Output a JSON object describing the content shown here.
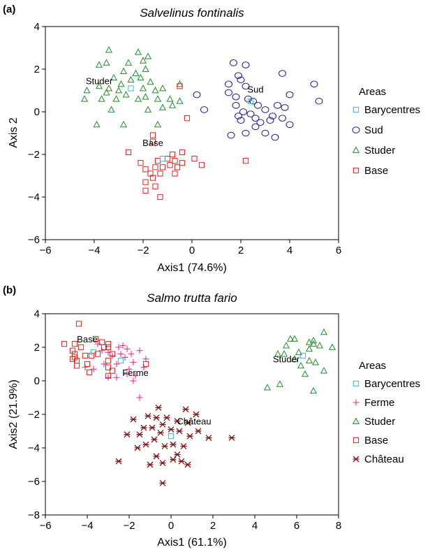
{
  "colors": {
    "barycentres": "#3fb6c8",
    "sud": "#1c1c8c",
    "studer": "#1f8a2b",
    "base": "#e0201c",
    "ferme": "#e0208c",
    "chateau": "#7a1414"
  },
  "chart_data": [
    {
      "type": "scatter",
      "panel_label": "(a)",
      "title": "Salvelinus fontinalis",
      "xlabel": "Axis1 (74.6%)",
      "ylabel": "Axis 2",
      "xlim": [
        -6,
        6
      ],
      "ylim": [
        -6,
        4
      ],
      "xticks": [
        -6,
        -4,
        -2,
        0,
        2,
        4,
        6
      ],
      "yticks": [
        -6,
        -4,
        -2,
        0,
        2,
        4
      ],
      "xtick_labels": [
        "−6",
        "−4",
        "−2",
        "0",
        "2",
        "4",
        "6"
      ],
      "ytick_labels": [
        "−6",
        "−4",
        "−2",
        "0",
        "2",
        "4"
      ],
      "legend_title": "Areas",
      "legend_position": "right",
      "group_labels": [
        {
          "text": "Studer",
          "x": -3.8,
          "y": 1.3
        },
        {
          "text": "Sud",
          "x": 2.6,
          "y": 0.9
        },
        {
          "text": "Base",
          "x": -1.6,
          "y": -1.6
        }
      ],
      "series": [
        {
          "name": "Barycentres",
          "marker": "square",
          "color": "#3fb6c8",
          "points": [
            [
              -2.5,
              1.1
            ],
            [
              2.4,
              0.5
            ],
            [
              -1.2,
              -2.2
            ]
          ]
        },
        {
          "name": "Sud",
          "marker": "circle",
          "color": "#1c1c8c",
          "points": [
            [
              1.7,
              2.3
            ],
            [
              2.2,
              2.2
            ],
            [
              1.9,
              1.7
            ],
            [
              2.0,
              1.5
            ],
            [
              1.5,
              1.3
            ],
            [
              2.2,
              1.2
            ],
            [
              3.7,
              1.8
            ],
            [
              4.0,
              0.8
            ],
            [
              5.0,
              1.3
            ],
            [
              5.2,
              0.5
            ],
            [
              0.2,
              0.8
            ],
            [
              0.5,
              0.1
            ],
            [
              1.5,
              0.9
            ],
            [
              1.8,
              0.7
            ],
            [
              2.5,
              0.5
            ],
            [
              2.7,
              0.3
            ],
            [
              3.0,
              0.1
            ],
            [
              3.3,
              -0.2
            ],
            [
              3.5,
              0.3
            ],
            [
              3.8,
              0.2
            ],
            [
              2.4,
              -0.1
            ],
            [
              2.6,
              -0.3
            ],
            [
              2.0,
              -0.4
            ],
            [
              2.1,
              0.0
            ],
            [
              1.9,
              -0.2
            ],
            [
              2.8,
              -0.5
            ],
            [
              3.2,
              -0.4
            ],
            [
              3.7,
              -0.3
            ],
            [
              4.0,
              -0.6
            ],
            [
              2.2,
              -1.0
            ],
            [
              3.0,
              -1.0
            ],
            [
              1.6,
              -1.1
            ],
            [
              2.6,
              -0.7
            ],
            [
              1.8,
              0.3
            ],
            [
              2.3,
              0.6
            ],
            [
              3.4,
              -1.2
            ]
          ]
        },
        {
          "name": "Studer",
          "marker": "triangle",
          "color": "#1f8a2b",
          "points": [
            [
              -3.4,
              2.9
            ],
            [
              -2.2,
              2.8
            ],
            [
              -1.8,
              2.6
            ],
            [
              -2.0,
              2.4
            ],
            [
              -3.8,
              2.2
            ],
            [
              -3.5,
              2.3
            ],
            [
              -2.6,
              2.3
            ],
            [
              -1.9,
              2.0
            ],
            [
              -2.3,
              1.8
            ],
            [
              -3.2,
              1.6
            ],
            [
              -2.8,
              1.9
            ],
            [
              -2.1,
              1.6
            ],
            [
              -1.7,
              1.4
            ],
            [
              -2.5,
              1.5
            ],
            [
              -2.9,
              1.3
            ],
            [
              -3.4,
              1.1
            ],
            [
              -3.8,
              1.2
            ],
            [
              -4.3,
              1.0
            ],
            [
              -3.0,
              1.0
            ],
            [
              -2.0,
              1.1
            ],
            [
              -1.5,
              1.0
            ],
            [
              -1.2,
              1.1
            ],
            [
              -0.5,
              1.3
            ],
            [
              -3.5,
              0.9
            ],
            [
              -2.7,
              0.8
            ],
            [
              -4.4,
              0.6
            ],
            [
              -3.7,
              0.6
            ],
            [
              -3.1,
              0.6
            ],
            [
              -2.2,
              0.6
            ],
            [
              -1.9,
              0.7
            ],
            [
              -1.4,
              0.6
            ],
            [
              -0.9,
              0.6
            ],
            [
              -0.5,
              0.5
            ],
            [
              -3.3,
              0.1
            ],
            [
              -1.8,
              0.1
            ],
            [
              -1.2,
              0.2
            ],
            [
              -0.8,
              0.3
            ],
            [
              -3.9,
              -0.6
            ],
            [
              -2.8,
              -0.6
            ],
            [
              -1.4,
              -0.6
            ]
          ]
        },
        {
          "name": "Base",
          "marker": "square",
          "color": "#e0201c",
          "points": [
            [
              -0.5,
              1.2
            ],
            [
              -0.2,
              -0.3
            ],
            [
              -1.6,
              -1.1
            ],
            [
              -1.6,
              -1.4
            ],
            [
              -2.6,
              -1.9
            ],
            [
              -0.4,
              -1.9
            ],
            [
              -1.0,
              -2.2
            ],
            [
              -2.1,
              -2.4
            ],
            [
              -1.9,
              -2.7
            ],
            [
              -1.5,
              -2.6
            ],
            [
              -1.4,
              -2.3
            ],
            [
              -1.3,
              -2.9
            ],
            [
              -1.7,
              -2.9
            ],
            [
              -1.2,
              -2.6
            ],
            [
              -0.8,
              -2.0
            ],
            [
              -0.7,
              -2.3
            ],
            [
              -0.6,
              -2.6
            ],
            [
              -0.4,
              -2.4
            ],
            [
              -0.9,
              -2.5
            ],
            [
              -1.9,
              -3.3
            ],
            [
              -1.6,
              -3.1
            ],
            [
              -1.5,
              -3.5
            ],
            [
              -1.9,
              -3.7
            ],
            [
              -1.3,
              -4.0
            ],
            [
              -0.7,
              -2.9
            ],
            [
              0.1,
              -2.2
            ],
            [
              0.4,
              -2.5
            ],
            [
              2.2,
              -2.3
            ]
          ]
        }
      ]
    },
    {
      "type": "scatter",
      "panel_label": "(b)",
      "title": "Salmo trutta fario",
      "xlabel": "Axis1 (61.1%)",
      "ylabel": "Axis2 (21.9%)",
      "xlim": [
        -6,
        8
      ],
      "ylim": [
        -8,
        4
      ],
      "xticks": [
        -6,
        -4,
        -2,
        0,
        2,
        4,
        6,
        8
      ],
      "yticks": [
        -8,
        -6,
        -4,
        -2,
        0,
        2,
        4
      ],
      "xtick_labels": [
        "−6",
        "−4",
        "−2",
        "0",
        "2",
        "4",
        "6",
        "8"
      ],
      "ytick_labels": [
        "−8",
        "−6",
        "−4",
        "−2",
        "0",
        "2",
        "4"
      ],
      "legend_title": "Areas",
      "legend_position": "right",
      "group_labels": [
        {
          "text": "Base",
          "x": -4.0,
          "y": 2.3
        },
        {
          "text": "Ferme",
          "x": -1.7,
          "y": 0.3
        },
        {
          "text": "Studer",
          "x": 5.5,
          "y": 1.1
        },
        {
          "text": "Château",
          "x": 1.1,
          "y": -2.6
        }
      ],
      "series": [
        {
          "name": "Barycentres",
          "marker": "square",
          "color": "#3fb6c8",
          "points": [
            [
              -3.7,
              1.7
            ],
            [
              -2.4,
              1.2
            ],
            [
              6.3,
              1.5
            ],
            [
              0.0,
              -3.3
            ]
          ]
        },
        {
          "name": "Ferme",
          "marker": "plus",
          "color": "#e0208c",
          "points": [
            [
              -3.5,
              2.2
            ],
            [
              -2.5,
              2.0
            ],
            [
              -2.3,
              2.1
            ],
            [
              -2.1,
              1.9
            ],
            [
              -1.5,
              1.8
            ],
            [
              -3.3,
              1.8
            ],
            [
              -3.0,
              1.7
            ],
            [
              -2.8,
              1.5
            ],
            [
              -2.2,
              1.4
            ],
            [
              -1.2,
              1.3
            ],
            [
              -1.8,
              1.1
            ],
            [
              -2.6,
              1.0
            ],
            [
              -3.2,
              1.0
            ],
            [
              -2.0,
              0.7
            ],
            [
              -4.1,
              0.8
            ],
            [
              -3.7,
              0.7
            ],
            [
              -2.1,
              0.4
            ],
            [
              -1.7,
              0.3
            ],
            [
              -2.6,
              0.2
            ],
            [
              -3.0,
              0.2
            ],
            [
              -1.8,
              0.0
            ],
            [
              -1.9,
              1.6
            ],
            [
              -1.5,
              -1.0
            ],
            [
              -1.3,
              0.8
            ],
            [
              -2.4,
              1.6
            ]
          ]
        },
        {
          "name": "Studer",
          "marker": "triangle",
          "color": "#1f8a2b",
          "points": [
            [
              7.3,
              2.9
            ],
            [
              5.7,
              2.5
            ],
            [
              5.9,
              2.5
            ],
            [
              6.8,
              2.4
            ],
            [
              6.6,
              2.3
            ],
            [
              6.8,
              2.2
            ],
            [
              5.5,
              2.1
            ],
            [
              7.1,
              2.1
            ],
            [
              7.7,
              2.0
            ],
            [
              6.6,
              1.9
            ],
            [
              6.1,
              1.7
            ],
            [
              5.4,
              1.6
            ],
            [
              5.1,
              1.6
            ],
            [
              5.9,
              1.3
            ],
            [
              6.6,
              1.2
            ],
            [
              6.9,
              1.1
            ],
            [
              6.2,
              0.9
            ],
            [
              6.4,
              0.4
            ],
            [
              7.3,
              0.6
            ],
            [
              5.2,
              -0.2
            ],
            [
              4.6,
              -0.4
            ],
            [
              6.8,
              -0.6
            ]
          ]
        },
        {
          "name": "Base",
          "marker": "square",
          "color": "#e0201c",
          "points": [
            [
              -4.4,
              3.4
            ],
            [
              -5.1,
              2.2
            ],
            [
              -4.6,
              2.2
            ],
            [
              -4.3,
              2.0
            ],
            [
              -3.6,
              2.5
            ],
            [
              -3.3,
              2.3
            ],
            [
              -3.0,
              2.2
            ],
            [
              -3.0,
              2.0
            ],
            [
              -3.2,
              2.0
            ],
            [
              -4.7,
              1.8
            ],
            [
              -4.6,
              1.6
            ],
            [
              -4.6,
              1.4
            ],
            [
              -4.7,
              1.3
            ],
            [
              -4.5,
              1.2
            ],
            [
              -4.1,
              1.5
            ],
            [
              -3.8,
              1.5
            ],
            [
              -3.5,
              1.6
            ],
            [
              -2.8,
              1.6
            ],
            [
              -3.0,
              1.2
            ],
            [
              -4.0,
              1.0
            ],
            [
              -4.5,
              0.9
            ],
            [
              -3.9,
              0.5
            ],
            [
              -3.0,
              0.8
            ],
            [
              -3.0,
              0.3
            ],
            [
              -2.8,
              0.6
            ],
            [
              -1.2,
              1.0
            ]
          ]
        },
        {
          "name": "Château",
          "marker": "asterisk",
          "color": "#7a1414",
          "points": [
            [
              -0.6,
              -1.6
            ],
            [
              0.7,
              -1.7
            ],
            [
              -1.1,
              -2.1
            ],
            [
              -0.7,
              -2.2
            ],
            [
              -0.2,
              -2.2
            ],
            [
              1.2,
              -2.0
            ],
            [
              -1.8,
              -2.3
            ],
            [
              0.3,
              -2.4
            ],
            [
              0.8,
              -2.5
            ],
            [
              -0.4,
              -2.6
            ],
            [
              -1.3,
              -2.8
            ],
            [
              -0.9,
              -2.8
            ],
            [
              0.0,
              -2.9
            ],
            [
              0.4,
              -3.0
            ],
            [
              -0.5,
              -3.1
            ],
            [
              1.3,
              -3.0
            ],
            [
              -1.5,
              -3.2
            ],
            [
              -2.1,
              -3.2
            ],
            [
              0.9,
              -3.3
            ],
            [
              2.9,
              -3.4
            ],
            [
              1.8,
              -3.4
            ],
            [
              -0.8,
              -3.5
            ],
            [
              -1.2,
              -3.8
            ],
            [
              0.1,
              -3.8
            ],
            [
              -0.3,
              -3.9
            ],
            [
              0.6,
              -3.9
            ],
            [
              -1.6,
              -4.0
            ],
            [
              0.3,
              -4.4
            ],
            [
              -0.7,
              -4.5
            ],
            [
              0.1,
              -4.7
            ],
            [
              -2.5,
              -4.8
            ],
            [
              0.5,
              -4.8
            ],
            [
              -0.4,
              -4.9
            ],
            [
              -1.0,
              -5.0
            ],
            [
              0.8,
              -5.0
            ],
            [
              -0.4,
              -6.1
            ]
          ]
        }
      ]
    }
  ]
}
